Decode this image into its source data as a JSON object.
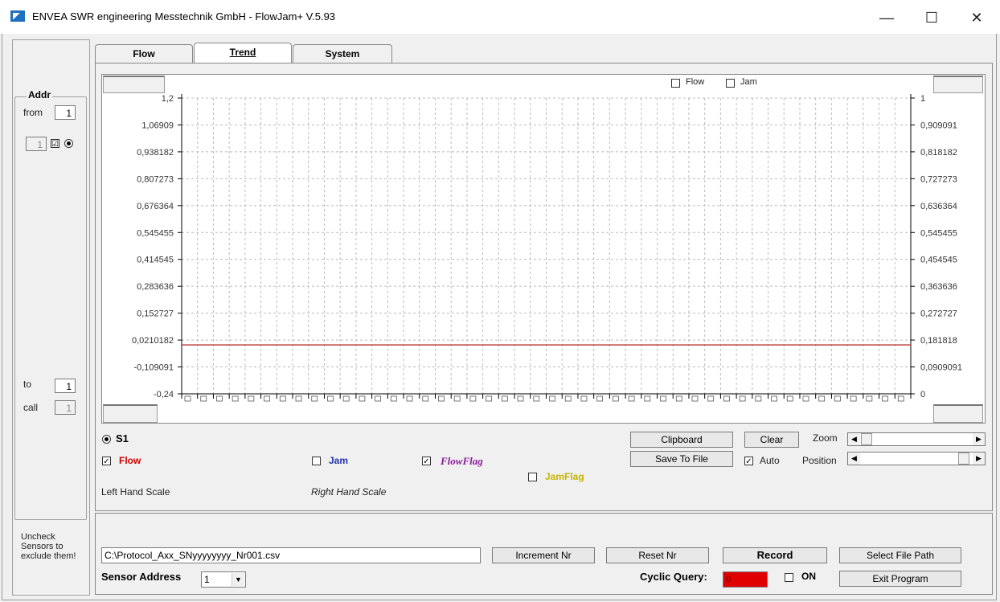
{
  "window": {
    "title": "ENVEA SWR engineering Messtechnik GmbH - FlowJam+  V.5.93",
    "minimize": "—",
    "maximize": "☐",
    "close": "✕"
  },
  "tabs": [
    {
      "label": "Flow",
      "active": false
    },
    {
      "label": "Trend",
      "active": true
    },
    {
      "label": "System",
      "active": false
    }
  ],
  "left_panel": {
    "addr_label": "Addr",
    "from_label": "from",
    "from_value": "1",
    "sensor_value": "1",
    "sensor_checked": "☑",
    "to_label": "to",
    "to_value": "1",
    "call_label": "call",
    "call_value": "1",
    "note": "Uncheck Sensors to exclude them!"
  },
  "chart_top": {
    "flow_label": "Flow",
    "jam_label": "Jam"
  },
  "chart_data": {
    "type": "line",
    "left_axis": {
      "ylim": [
        -0.24,
        1.2
      ],
      "ticks": [
        "1,2",
        "1,06909",
        "0,938182",
        "0,807273",
        "0,676364",
        "0,545455",
        "0,414545",
        "0,283636",
        "0,152727",
        "0,0210182",
        "-0,109091",
        "-0,24"
      ]
    },
    "right_axis": {
      "ylim": [
        0,
        1
      ],
      "ticks": [
        "1",
        "0,909091",
        "0,818182",
        "0,727273",
        "0,636364",
        "0,545455",
        "0,454545",
        "0,363636",
        "0,272727",
        "0,181818",
        "0,0909091",
        "0"
      ]
    },
    "x_ticks": 46,
    "grid": true,
    "series": [
      {
        "values": [
          0.0,
          0.0
        ],
        "color": "#c04040"
      }
    ]
  },
  "legend": {
    "s1_label": "S1",
    "flow_label": "Flow",
    "flow_checked": "✓",
    "jam_label": "Jam",
    "flowflag_label": "FlowFlag",
    "flowflag_checked": "✓",
    "jamflag_label": "JamFlag",
    "left_scale": "Left Hand Scale",
    "right_scale": "Right Hand Scale"
  },
  "controls": {
    "clipboard": "Clipboard",
    "clear": "Clear",
    "save_to_file": "Save To File",
    "auto_label": "Auto",
    "auto_checked": "✓",
    "zoom_label": "Zoom",
    "position_label": "Position"
  },
  "bottom": {
    "file_path": "C:\\Protocol_Axx_SNyyyyyyyy_Nr001.csv",
    "increment": "Increment Nr",
    "reset": "Reset Nr",
    "record": "Record",
    "select_path": "Select File Path",
    "sensor_address_label": "Sensor Address",
    "sensor_address_value": "1",
    "cyclic_label": "Cyclic Query:",
    "cyclic_value": "0",
    "on_label": "ON",
    "exit": "Exit Program"
  },
  "colors": {
    "flow": "#cc0000",
    "jam": "#2233aa",
    "flowflag": "#8a1a9a",
    "jamflag": "#c8b400",
    "cyclic_bg": "#e00000"
  }
}
